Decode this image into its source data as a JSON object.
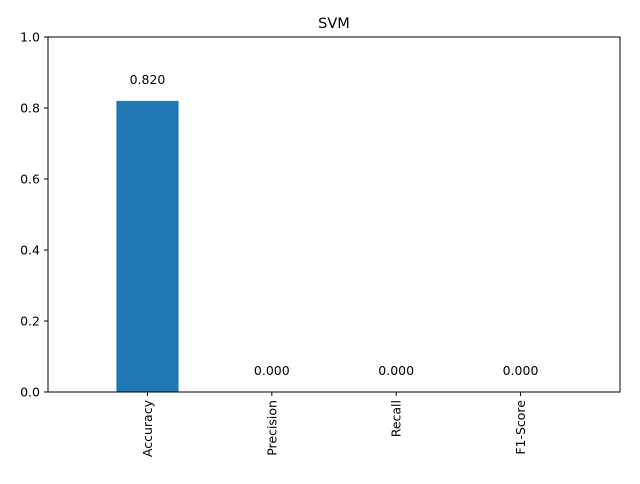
{
  "chart_data": {
    "type": "bar",
    "title": "SVM",
    "xlabel": "",
    "ylabel": "",
    "categories": [
      "Accuracy",
      "Precision",
      "Recall",
      "F1-Score"
    ],
    "values": [
      0.82,
      0.0,
      0.0,
      0.0
    ],
    "value_labels": [
      "0.820",
      "0.000",
      "0.000",
      "0.000"
    ],
    "ylim": [
      0,
      1.0
    ],
    "yticks": [
      0.0,
      0.2,
      0.4,
      0.6,
      0.8,
      1.0
    ],
    "ytick_labels": [
      "0.0",
      "0.2",
      "0.4",
      "0.6",
      "0.8",
      "1.0"
    ],
    "xtick_rotation": "vertical",
    "grid": false,
    "legend": "none",
    "bar_color": "#1f77b4"
  }
}
